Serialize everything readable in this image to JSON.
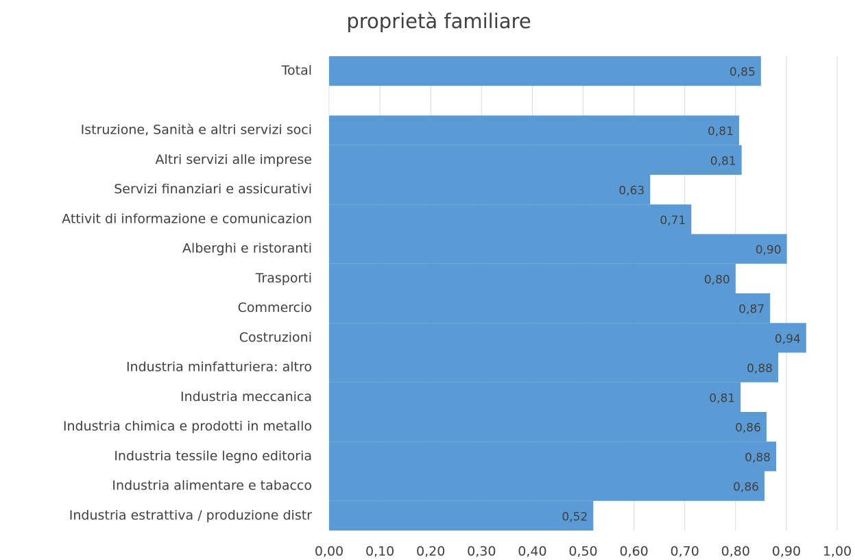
{
  "chart_data": {
    "type": "barh",
    "title": "proprietà familiare",
    "categories": [
      "Total",
      null,
      "Istruzione, Sanità e altri servizi soci",
      "Altri servizi alle imprese",
      "Servizi finanziari e assicurativi",
      "Attivit di informazione e comunicazion",
      "Alberghi e ristoranti",
      "Trasporti",
      "Commercio",
      "Costruzioni",
      "Industria minfatturiera: altro",
      "Industria meccanica",
      "Industria chimica e prodotti in metallo",
      "Industria tessile legno editoria",
      "Industria alimentare e tabacco",
      "Industria estrattiva / produzione distr"
    ],
    "values": [
      0.85,
      null,
      0.807,
      0.812,
      0.632,
      0.713,
      0.901,
      0.8,
      0.868,
      0.939,
      0.884,
      0.81,
      0.861,
      0.88,
      0.857,
      0.52
    ],
    "value_labels": [
      "0,85",
      null,
      "0,81",
      "0,81",
      "0,63",
      "0,71",
      "0,90",
      "0,80",
      "0,87",
      "0,94",
      "0,88",
      "0,81",
      "0,86",
      "0,88",
      "0,86",
      "0,52"
    ],
    "color": "#5b9bd5",
    "xlim": [
      0,
      1
    ],
    "xticks": [
      {
        "value": 0,
        "label": "0,00"
      },
      {
        "value": 0.1,
        "label": "0,10"
      },
      {
        "value": 0.2,
        "label": "0,20"
      },
      {
        "value": 0.3,
        "label": "0,30"
      },
      {
        "value": 0.4,
        "label": "0,40"
      },
      {
        "value": 0.5,
        "label": "0,50"
      },
      {
        "value": 0.6,
        "label": "0,60"
      },
      {
        "value": 0.7,
        "label": "0,70"
      },
      {
        "value": 0.8,
        "label": "0,80"
      },
      {
        "value": 0.9,
        "label": "0,90"
      },
      {
        "value": 1,
        "label": "1,00"
      }
    ],
    "grid": true
  }
}
